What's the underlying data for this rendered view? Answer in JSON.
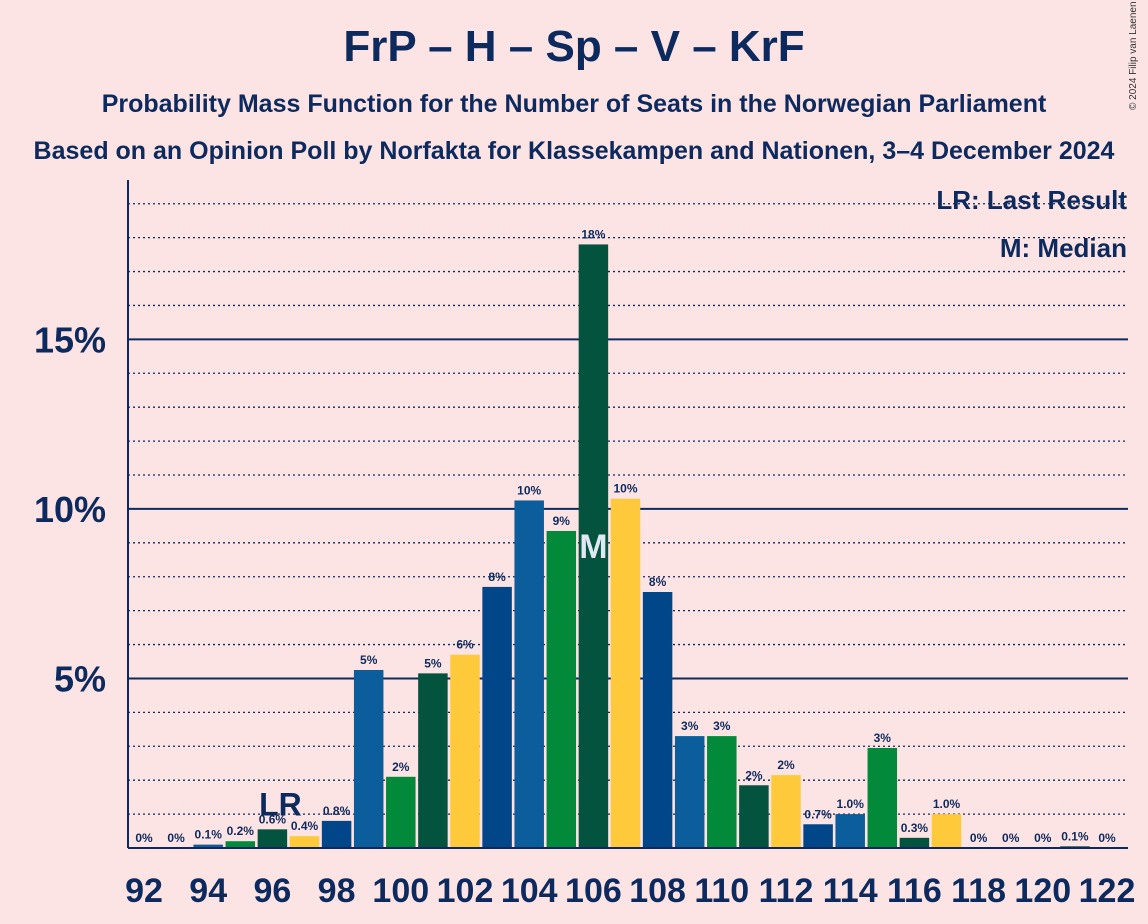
{
  "header": {
    "title": "FrP – H – Sp – V – KrF",
    "subtitle1": "Probability Mass Function for the Number of Seats in the Norwegian Parliament",
    "subtitle2": "Based on an Opinion Poll by Norfakta for Klassekampen and Nationen, 3–4 December 2024",
    "copyright": "© 2024 Filip van Laenen"
  },
  "legend": {
    "lr": "LR: Last Result",
    "median": "M: Median"
  },
  "markers": {
    "last_result_label": "LR",
    "last_result_seat": 96,
    "median_label": "M",
    "median_seat": 106
  },
  "colors": {
    "background": "#fde4e4",
    "text": "#0d2a5e",
    "axis": "#0d2a5e",
    "party_cycle": [
      "#ffc93c",
      "#02468a",
      "#0c5d9b",
      "#028a3a",
      "#03533f"
    ]
  },
  "chart_data": {
    "type": "bar",
    "title": "FrP – H – Sp – V – KrF",
    "x": [
      92,
      93,
      94,
      95,
      96,
      97,
      98,
      99,
      100,
      101,
      102,
      103,
      104,
      105,
      106,
      107,
      108,
      109,
      110,
      111,
      112,
      113,
      114,
      115,
      116,
      117,
      118,
      119,
      120,
      121,
      122
    ],
    "values": [
      0,
      0,
      0.1,
      0.2,
      0.55,
      0.35,
      0.8,
      5.25,
      2.1,
      5.15,
      5.7,
      7.7,
      10.25,
      9.35,
      17.8,
      10.3,
      7.55,
      3.3,
      3.3,
      1.85,
      2.15,
      0.7,
      1.0,
      2.95,
      0.3,
      1.0,
      0,
      0,
      0,
      0.05,
      0
    ],
    "labels": [
      "0%",
      "0%",
      "0.1%",
      "0.2%",
      "0.6%",
      "0.4%",
      "0.8%",
      "5%",
      "2%",
      "5%",
      "6%",
      "8%",
      "10%",
      "9%",
      "18%",
      "10%",
      "8%",
      "3%",
      "3%",
      "2%",
      "2%",
      "0.7%",
      "1.0%",
      "3%",
      "0.3%",
      "1.0%",
      "0%",
      "0%",
      "0%",
      "0.1%",
      "0%"
    ],
    "x_ticks": [
      92,
      94,
      96,
      98,
      100,
      102,
      104,
      106,
      108,
      110,
      112,
      114,
      116,
      118,
      120,
      122
    ],
    "y_ticks": [
      5,
      10,
      15
    ],
    "y_tick_labels": [
      "5%",
      "10%",
      "15%"
    ],
    "ylim": [
      0,
      19.7
    ],
    "minor_grid_step": 1,
    "grid": true,
    "legend_position": "top-right"
  }
}
